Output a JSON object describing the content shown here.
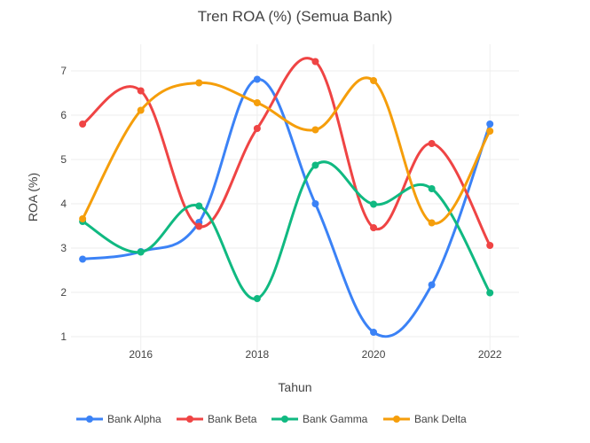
{
  "chart_data": {
    "type": "line",
    "title": "Tren ROA (%) (Semua Bank)",
    "xlabel": "Tahun",
    "ylabel": "ROA (%)",
    "x": [
      2015,
      2016,
      2017,
      2018,
      2019,
      2020,
      2021,
      2022
    ],
    "x_ticks": [
      "2016",
      "2018",
      "2020",
      "2022"
    ],
    "y_ticks": [
      "1",
      "2",
      "3",
      "4",
      "5",
      "6",
      "7"
    ],
    "xlim": [
      2014.8,
      2022.5
    ],
    "ylim": [
      0.7,
      7.6
    ],
    "grid": true,
    "legend_position": "bottom",
    "series": [
      {
        "name": "Bank Alpha",
        "color": "#3b82f6",
        "values": [
          2.75,
          2.92,
          3.58,
          6.81,
          4.0,
          1.1,
          2.17,
          5.8
        ]
      },
      {
        "name": "Bank Beta",
        "color": "#ef4444",
        "values": [
          5.8,
          6.55,
          3.49,
          5.7,
          7.21,
          3.46,
          5.36,
          3.06
        ]
      },
      {
        "name": "Bank Gamma",
        "color": "#10b981",
        "values": [
          3.6,
          2.91,
          3.95,
          1.86,
          4.87,
          3.99,
          4.34,
          1.99
        ]
      },
      {
        "name": "Bank Delta",
        "color": "#f59e0b",
        "values": [
          3.66,
          6.11,
          6.73,
          6.28,
          5.67,
          6.78,
          3.57,
          5.64
        ]
      }
    ]
  }
}
